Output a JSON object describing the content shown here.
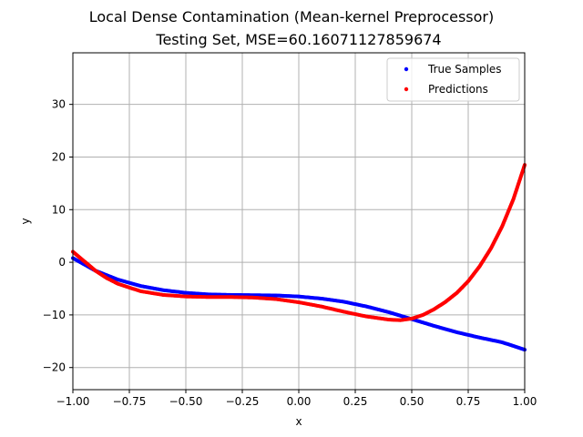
{
  "chart_data": {
    "type": "scatter",
    "title_line1": "Local Dense Contamination (Mean-kernel Preprocessor)",
    "title_line2": "Testing Set, MSE=60.16071127859674",
    "xlabel": "x",
    "ylabel": "y",
    "xlim": [
      -1.0,
      1.0
    ],
    "ylim": [
      -24.2,
      39.8
    ],
    "x_ticks": [
      -1.0,
      -0.75,
      -0.5,
      -0.25,
      0.0,
      0.25,
      0.5,
      0.75,
      1.0
    ],
    "x_tick_labels": [
      "−1.00",
      "−0.75",
      "−0.50",
      "−0.25",
      "0.00",
      "0.25",
      "0.50",
      "0.75",
      "1.00"
    ],
    "y_ticks": [
      -20,
      -10,
      0,
      10,
      20,
      30
    ],
    "y_tick_labels": [
      "−20",
      "−10",
      "0",
      "10",
      "20",
      "30"
    ],
    "grid": true,
    "legend_position": "top-right",
    "series": [
      {
        "name": "True Samples",
        "color": "#0000ff",
        "x": [
          -1.0,
          -0.9,
          -0.8,
          -0.7,
          -0.6,
          -0.5,
          -0.4,
          -0.3,
          -0.2,
          -0.1,
          0.0,
          0.1,
          0.2,
          0.3,
          0.4,
          0.5,
          0.6,
          0.7,
          0.8,
          0.9,
          1.0
        ],
        "y": [
          0.8,
          -1.6,
          -3.3,
          -4.5,
          -5.3,
          -5.8,
          -6.1,
          -6.2,
          -6.25,
          -6.3,
          -6.5,
          -6.9,
          -7.5,
          -8.4,
          -9.5,
          -10.8,
          -12.1,
          -13.3,
          -14.3,
          -15.2,
          -16.6
        ]
      },
      {
        "name": "Predictions",
        "color": "#ff0000",
        "x": [
          -1.0,
          -0.95,
          -0.9,
          -0.85,
          -0.8,
          -0.7,
          -0.6,
          -0.5,
          -0.4,
          -0.3,
          -0.2,
          -0.1,
          0.0,
          0.1,
          0.2,
          0.3,
          0.4,
          0.45,
          0.5,
          0.55,
          0.6,
          0.65,
          0.7,
          0.75,
          0.8,
          0.85,
          0.9,
          0.95,
          1.0
        ],
        "y": [
          2.0,
          0.2,
          -1.6,
          -3.0,
          -4.1,
          -5.5,
          -6.2,
          -6.5,
          -6.6,
          -6.6,
          -6.7,
          -7.0,
          -7.6,
          -8.4,
          -9.4,
          -10.3,
          -10.9,
          -11.0,
          -10.7,
          -10.0,
          -8.9,
          -7.5,
          -5.8,
          -3.6,
          -0.8,
          2.6,
          6.8,
          12.0,
          18.5
        ]
      }
    ]
  }
}
